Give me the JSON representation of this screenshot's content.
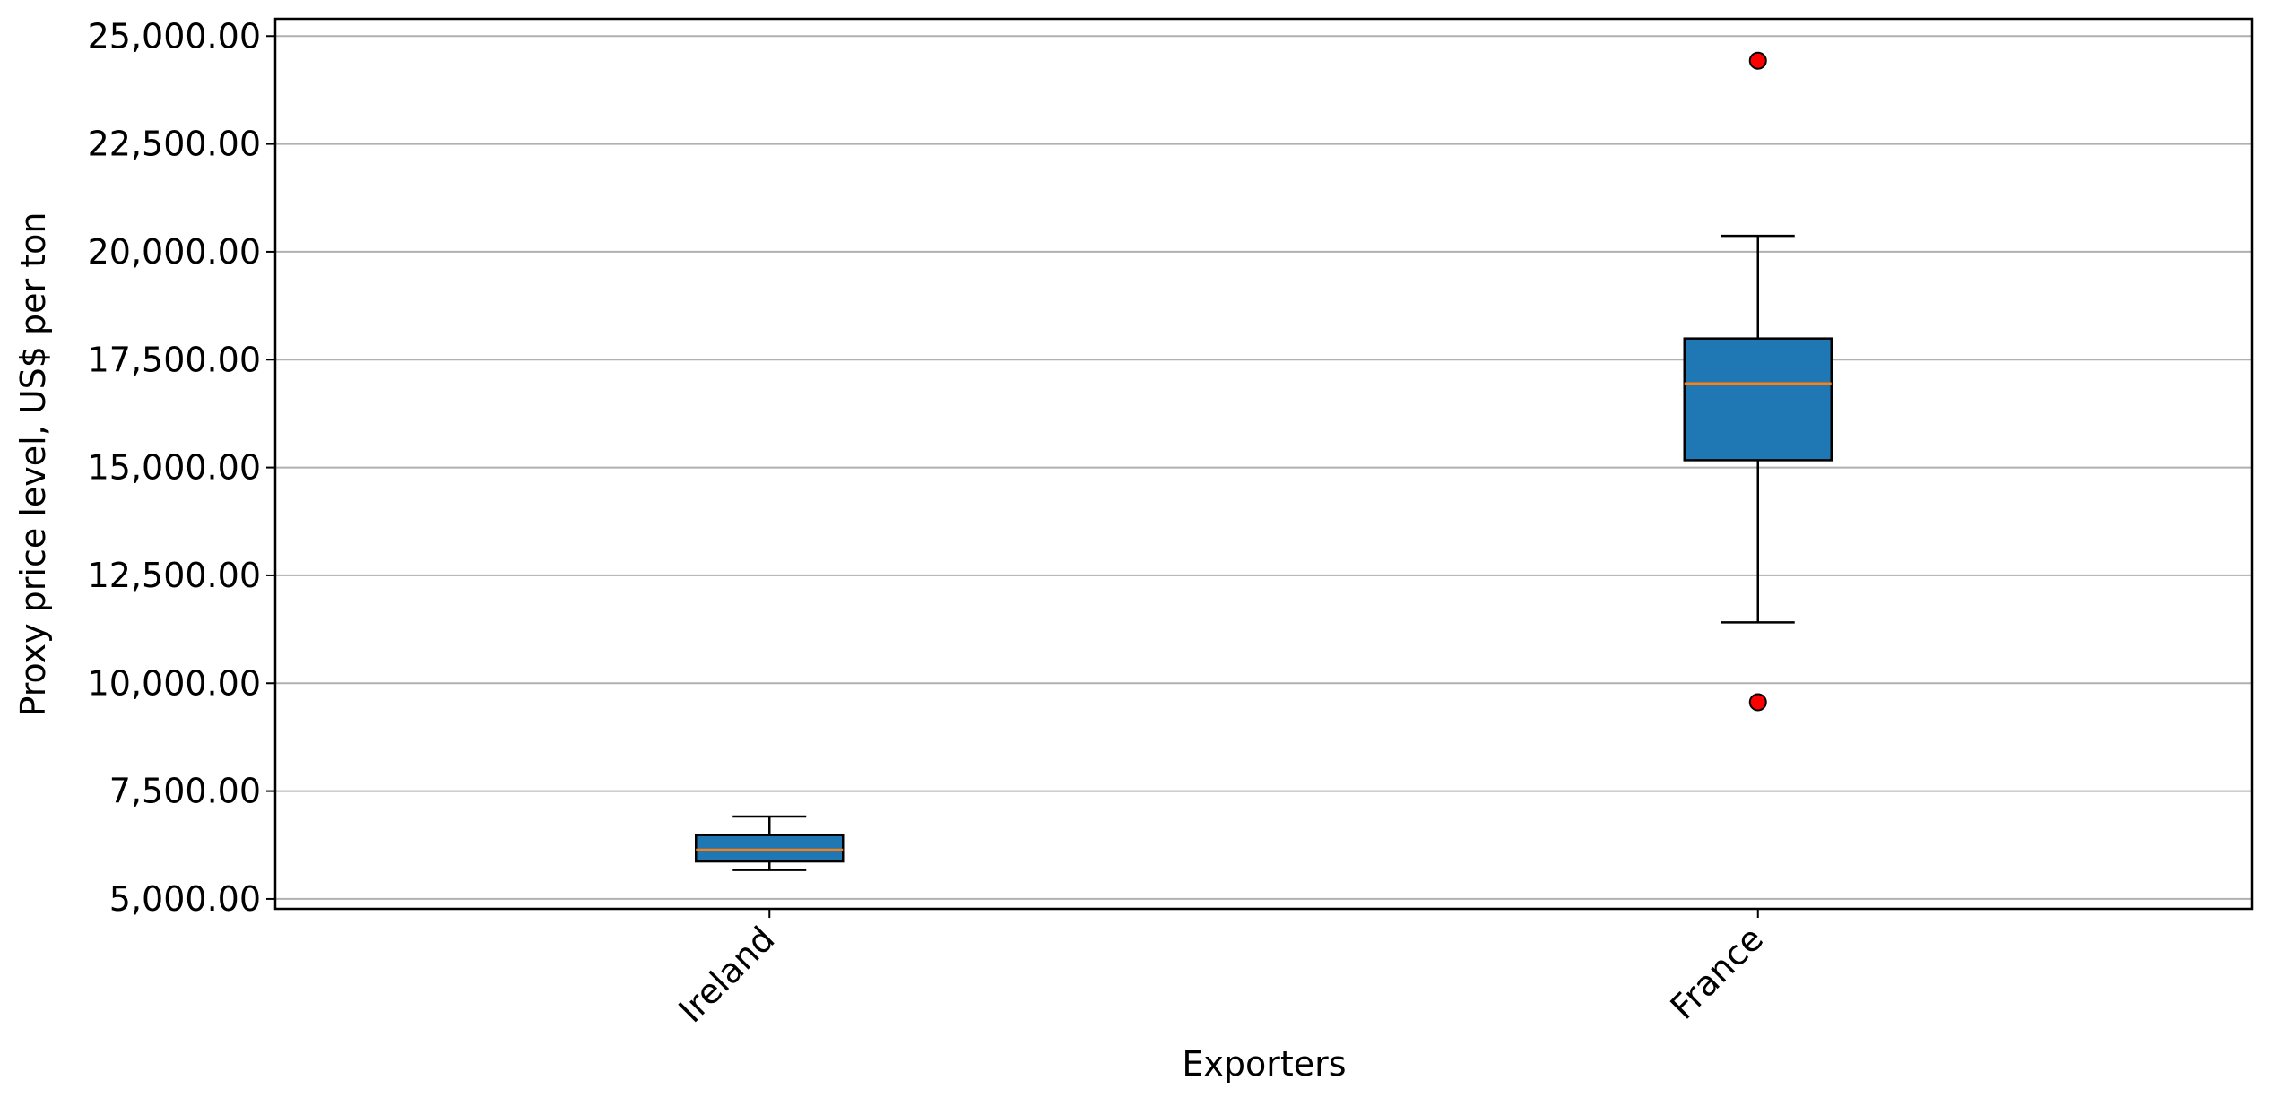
{
  "chart_data": {
    "type": "box",
    "x_label": "Exporters",
    "y_label": "Proxy price level, US$ per ton",
    "categories": [
      "Ireland",
      "France"
    ],
    "boxes": [
      {
        "whisker_low": 5670,
        "q1": 5870,
        "median": 6140,
        "q3": 6480,
        "whisker_high": 6910,
        "outliers": []
      },
      {
        "whisker_low": 11410,
        "q1": 15170,
        "median": 16950,
        "q3": 17990,
        "whisker_high": 20370,
        "outliers": [
          24430,
          9560
        ]
      }
    ],
    "box_color": "#1f77b4",
    "median_color": "#ff7f0e",
    "outlier_color": "#ff0000",
    "ylim": [
      4770,
      25400
    ],
    "yticks": [
      {
        "value": 5000,
        "label": "5,000.00"
      },
      {
        "value": 7500,
        "label": "7,500.00"
      },
      {
        "value": 10000,
        "label": "10,000.00"
      },
      {
        "value": 12500,
        "label": "12,500.00"
      },
      {
        "value": 15000,
        "label": "15,000.00"
      },
      {
        "value": 17500,
        "label": "17,500.00"
      },
      {
        "value": 20000,
        "label": "20,000.00"
      },
      {
        "value": 22500,
        "label": "22,500.00"
      },
      {
        "value": 25000,
        "label": "25,000.00"
      }
    ],
    "grid": true
  }
}
